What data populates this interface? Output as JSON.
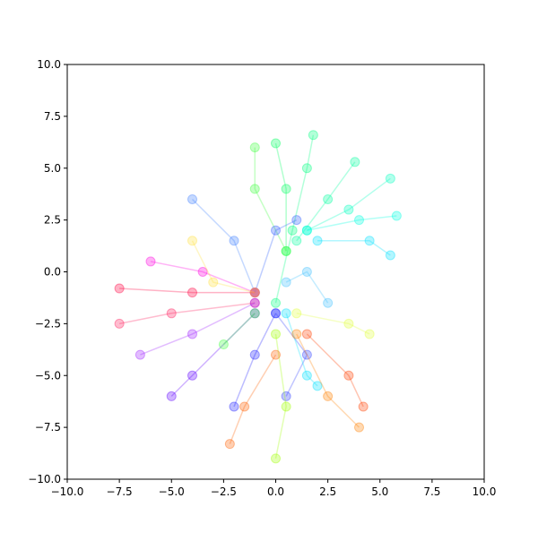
{
  "chart_data": {
    "type": "line",
    "markers": true,
    "xlim": [
      -10,
      10
    ],
    "ylim": [
      -10,
      10
    ],
    "xticks": [
      {
        "value": -10,
        "label": "−10.0"
      },
      {
        "value": -7.5,
        "label": "−7.5"
      },
      {
        "value": -5,
        "label": "−5.0"
      },
      {
        "value": -2.5,
        "label": "−2.5"
      },
      {
        "value": 0,
        "label": "0.0"
      },
      2.5,
      {
        "value": 5,
        "label": "5.0"
      },
      7.5,
      {
        "value": 10,
        "label": "10.0"
      }
    ],
    "yticks": [
      {
        "value": -10,
        "label": "−10.0"
      },
      {
        "value": -7.5,
        "label": "−7.5"
      },
      {
        "value": -5,
        "label": "−5.0"
      },
      {
        "value": -2.5,
        "label": "−2.5"
      },
      {
        "value": 0,
        "label": "0.0"
      },
      2.5,
      {
        "value": 5,
        "label": "5.0"
      },
      7.5,
      {
        "value": 10,
        "label": "10.0"
      }
    ],
    "series": [
      {
        "color": "#00ff80",
        "x": [
          0,
          0.8,
          1.5,
          1.8
        ],
        "y": [
          -1.5,
          2,
          5,
          6.6
        ]
      },
      {
        "color": "#00ff60",
        "x": [
          0.5,
          0.5,
          0
        ],
        "y": [
          1,
          4,
          6.2
        ]
      },
      {
        "color": "#00ffa0",
        "x": [
          1,
          2.5,
          3.8
        ],
        "y": [
          1.5,
          3.5,
          5.3
        ]
      },
      {
        "color": "#00ffc0",
        "x": [
          1.5,
          3.5,
          5.5
        ],
        "y": [
          2,
          3,
          4.5
        ]
      },
      {
        "color": "#00ffe0",
        "x": [
          1.5,
          4,
          5.8
        ],
        "y": [
          2,
          2.5,
          2.7
        ]
      },
      {
        "color": "#00e0ff",
        "x": [
          2,
          4.5,
          5.5
        ],
        "y": [
          1.5,
          1.5,
          0.8
        ]
      },
      {
        "color": "#40ff40",
        "x": [
          0.5,
          -1,
          -1
        ],
        "y": [
          1,
          4,
          6
        ]
      },
      {
        "color": "#4080ff",
        "x": [
          -1,
          -2,
          -4
        ],
        "y": [
          -1,
          1.5,
          3.5
        ]
      },
      {
        "color": "#3060ff",
        "x": [
          -1,
          0,
          1
        ],
        "y": [
          -1,
          2,
          2.5
        ]
      },
      {
        "color": "#40c0ff",
        "x": [
          0.5,
          1.5,
          2.5
        ],
        "y": [
          -0.5,
          0,
          -1.5
        ]
      },
      {
        "color": "#ff00e0",
        "x": [
          -1,
          -3.5,
          -6
        ],
        "y": [
          -1,
          0,
          0.5
        ]
      },
      {
        "color": "#ff0040",
        "x": [
          -1,
          -4,
          -7.5
        ],
        "y": [
          -1,
          -1,
          -0.8
        ]
      },
      {
        "color": "#ff2060",
        "x": [
          -1,
          -5,
          -7.5
        ],
        "y": [
          -1.5,
          -2,
          -2.5
        ]
      },
      {
        "color": "#a020ff",
        "x": [
          -1,
          -4,
          -6.5
        ],
        "y": [
          -1.5,
          -3,
          -4
        ]
      },
      {
        "color": "#6000ff",
        "x": [
          -1,
          -4,
          -5
        ],
        "y": [
          -2,
          -5,
          -6
        ]
      },
      {
        "color": "#2020ff",
        "x": [
          0,
          -1,
          -2
        ],
        "y": [
          -2,
          -4,
          -6.5
        ]
      },
      {
        "color": "#3040ff",
        "x": [
          0,
          1.5,
          0.5
        ],
        "y": [
          -2,
          -4,
          -6
        ]
      },
      {
        "color": "#00e0ff",
        "x": [
          0.5,
          1.5,
          2
        ],
        "y": [
          -2,
          -5,
          -5.5
        ]
      },
      {
        "color": "#40ff40",
        "x": [
          -1,
          -2.5
        ],
        "y": [
          -2,
          -3.5
        ]
      },
      {
        "color": "#a0ff00",
        "x": [
          0,
          0.5,
          0
        ],
        "y": [
          -3,
          -6.5,
          -9
        ]
      },
      {
        "color": "#ff8000",
        "x": [
          1,
          2.5,
          4
        ],
        "y": [
          -3,
          -6,
          -7.5
        ]
      },
      {
        "color": "#ff4000",
        "x": [
          1.5,
          3.5,
          4.2
        ],
        "y": [
          -3,
          -5,
          -6.5
        ]
      },
      {
        "color": "#ff6000",
        "x": [
          0,
          -1.5,
          -2.2
        ],
        "y": [
          -4,
          -6.5,
          -8.3
        ]
      },
      {
        "color": "#e0ff40",
        "x": [
          1,
          3.5,
          4.5
        ],
        "y": [
          -2,
          -2.5,
          -3
        ]
      },
      {
        "color": "#ffe040",
        "x": [
          -1,
          -3,
          -4
        ],
        "y": [
          -1,
          -0.5,
          1.5
        ]
      }
    ]
  }
}
